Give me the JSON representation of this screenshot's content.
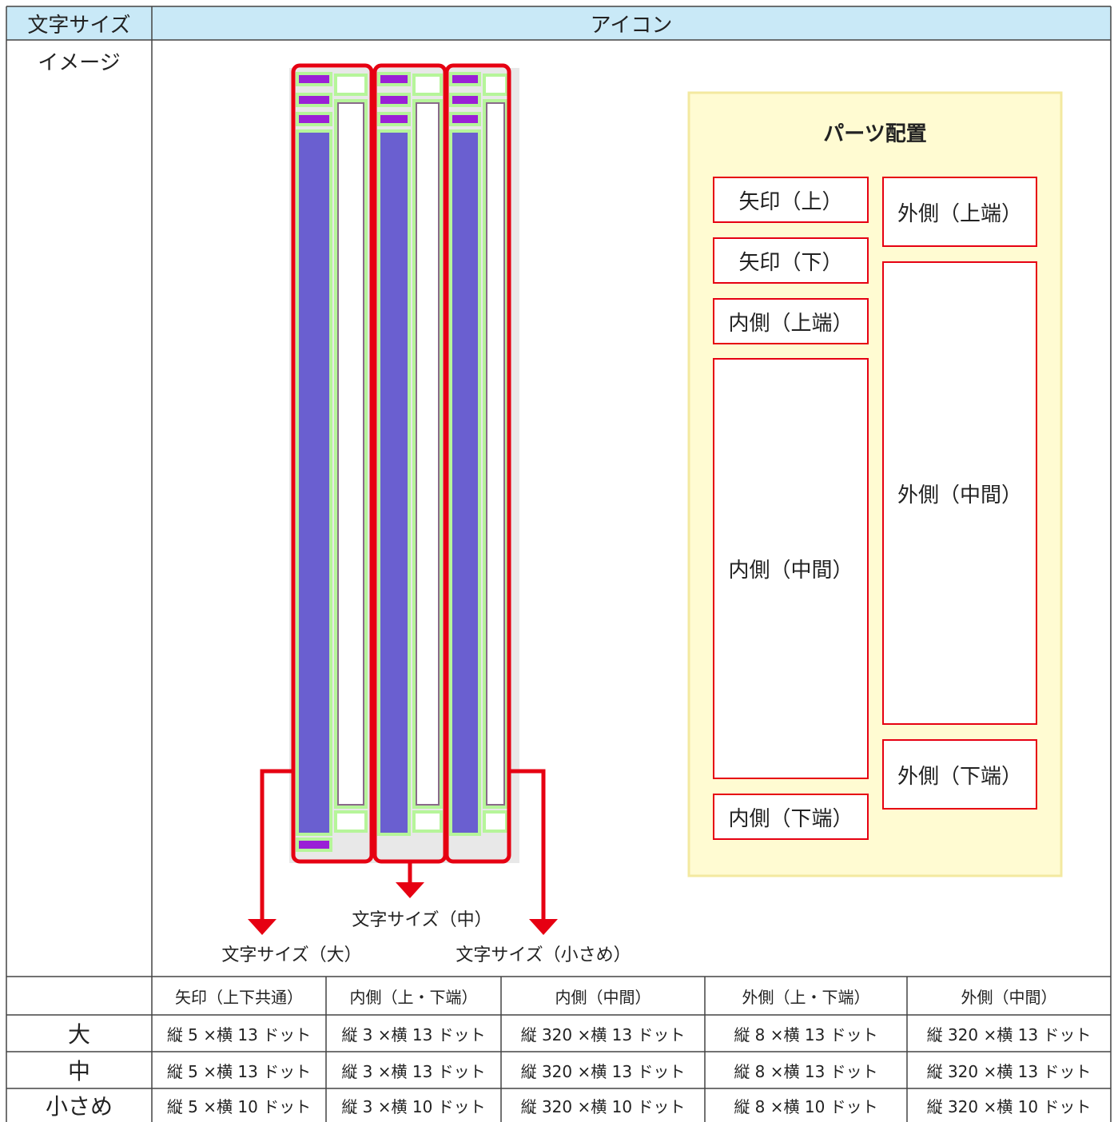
{
  "header": {
    "col1": "文字サイズ",
    "col2": "アイコン"
  },
  "image_row": {
    "label": "イメージ",
    "callouts": [
      "文字サイズ（大）",
      "文字サイズ（中）",
      "文字サイズ（小さめ）"
    ],
    "legend": {
      "title": "パーツ配置",
      "parts": [
        "矢印（上）",
        "矢印（下）",
        "内側（上端）",
        "内側（中間）",
        "内側（下端）",
        "外側（上端）",
        "外側（中間）",
        "外側（下端）"
      ]
    }
  },
  "table": {
    "columns": [
      "矢印（上下共通）",
      "内側（上・下端）",
      "内側（中間）",
      "外側（上・下端）",
      "外側（中間）"
    ],
    "rows": [
      {
        "label": "大",
        "cells": [
          "縦 5 ×横 13 ドット",
          "縦 3 ×横 13 ドット",
          "縦 320 ×横 13 ドット",
          "縦 8 ×横 13 ドット",
          "縦 320 ×横 13 ドット"
        ]
      },
      {
        "label": "中",
        "cells": [
          "縦 5 ×横 13 ドット",
          "縦 3 ×横 13 ドット",
          "縦 320 ×横 13 ドット",
          "縦 8 ×横 13 ドット",
          "縦 320 ×横 13 ドット"
        ]
      },
      {
        "label": "小さめ",
        "cells": [
          "縦 5 ×横 10 ドット",
          "縦 3 ×横 10 ドット",
          "縦 320 ×横 10 ドット",
          "縦 8 ×横 10 ドット",
          "縦 320 ×横 10 ドット"
        ]
      }
    ]
  }
}
